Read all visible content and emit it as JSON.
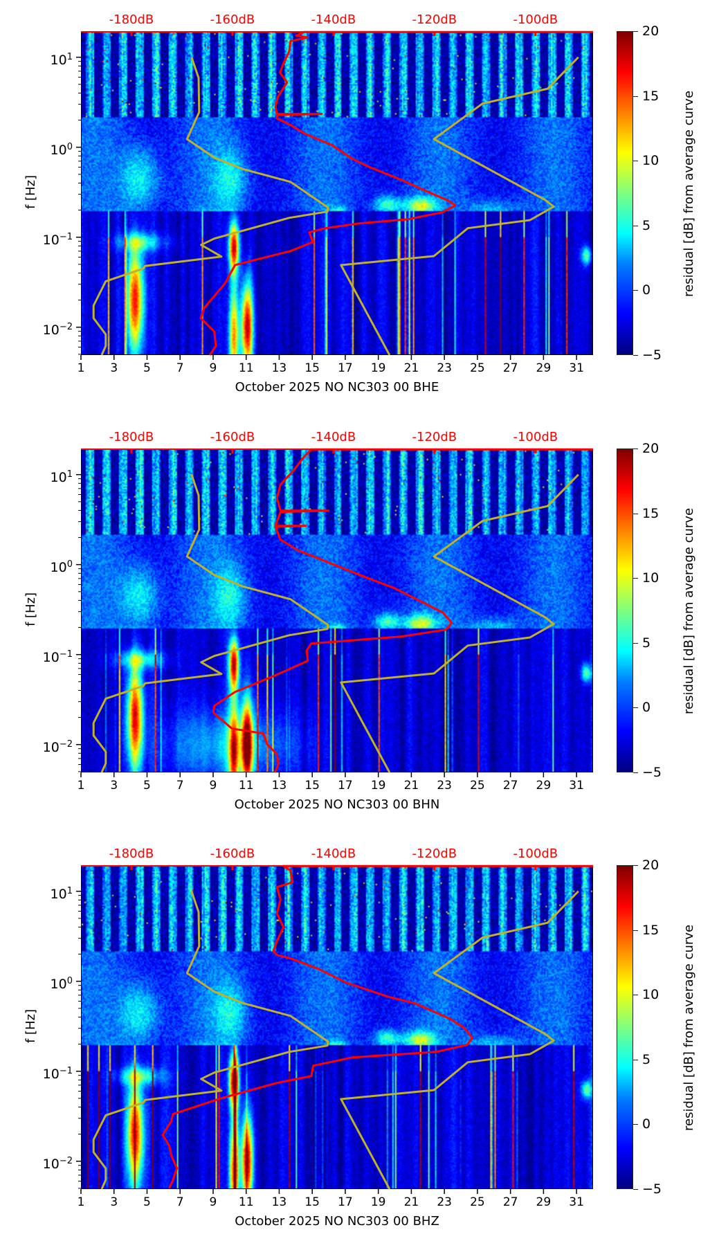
{
  "figure": {
    "colorbar": {
      "label": "residual [dB] from average curve",
      "ticks": [
        "20",
        "15",
        "10",
        "5",
        "0",
        "−5"
      ],
      "range": [
        -5,
        20
      ],
      "colormap": "jet"
    },
    "ylabel": "f [Hz]",
    "yticks": [
      {
        "base": "10",
        "exp": "1"
      },
      {
        "base": "10",
        "exp": "0"
      },
      {
        "base": "10",
        "exp": "−1"
      },
      {
        "base": "10",
        "exp": "−2"
      }
    ],
    "xticks": [
      "1",
      "3",
      "5",
      "7",
      "9",
      "11",
      "13",
      "15",
      "17",
      "19",
      "21",
      "23",
      "25",
      "27",
      "29",
      "31"
    ],
    "dbticks": [
      "-180dB",
      "-160dB",
      "-140dB",
      "-120dB",
      "-100dB"
    ]
  },
  "colors": {
    "average_curve": "#ff0000",
    "noise_model": "#bfb12a",
    "db_axis": "#ff0000"
  },
  "chart_data": [
    {
      "type": "heatmap",
      "title": "",
      "xlabel": "October 2025 NO NC303 00 BHE",
      "ylabel": "f [Hz]",
      "x_unit": "day of month",
      "xlim": [
        1,
        32
      ],
      "y_scale": "log",
      "ylim": [
        0.0049,
        19.5
      ],
      "top_axis": {
        "unit": "dB",
        "xlim": [
          -190,
          -88.6
        ],
        "ticks": [
          -180,
          -160,
          -140,
          -120,
          -100
        ]
      },
      "colorbar": {
        "label": "residual [dB] from average curve",
        "range": [
          -5,
          20
        ]
      },
      "series": [
        {
          "name": "average PSD curve",
          "axis": "top",
          "color": "red",
          "points_db_log10f": [
            [
              -88.6,
              1.28
            ],
            [
              -145.8,
              1.28
            ],
            [
              -147.4,
              1.24
            ],
            [
              -145.1,
              1.22
            ],
            [
              -148.5,
              1.18
            ],
            [
              -148.8,
              1.06
            ],
            [
              -149.9,
              0.93
            ],
            [
              -150.6,
              0.83
            ],
            [
              -149.2,
              0.72
            ],
            [
              -151.0,
              0.56
            ],
            [
              -151.5,
              0.45
            ],
            [
              -151.2,
              0.37
            ],
            [
              -142.3,
              0.37
            ],
            [
              -151.2,
              0.36
            ],
            [
              -151.2,
              0.32
            ],
            [
              -148.5,
              0.246
            ],
            [
              -145.8,
              0.154
            ],
            [
              -140.3,
              0.023
            ],
            [
              -136.2,
              -0.131
            ],
            [
              -133.4,
              -0.208
            ],
            [
              -126.6,
              -0.362
            ],
            [
              -121.1,
              -0.5
            ],
            [
              -117.3,
              -0.592
            ],
            [
              -115.9,
              -0.646
            ],
            [
              -118.4,
              -0.723
            ],
            [
              -125.2,
              -0.8
            ],
            [
              -134.8,
              -0.846
            ],
            [
              -141.6,
              -0.9
            ],
            [
              -144.8,
              -0.946
            ],
            [
              -144.1,
              -1.054
            ],
            [
              -148.5,
              -1.154
            ],
            [
              -154.7,
              -1.24
            ],
            [
              -159.5,
              -1.31
            ],
            [
              -161.5,
              -1.515
            ],
            [
              -165.6,
              -1.785
            ],
            [
              -166.3,
              -1.9
            ],
            [
              -163.6,
              -2.05
            ],
            [
              -163.3,
              -2.21
            ],
            [
              -164.5,
              -2.31
            ]
          ]
        },
        {
          "name": "low noise model",
          "axis": "top",
          "color": "yellow",
          "points_db_log10f": [
            [
              -168.1,
              1.0
            ],
            [
              -166.7,
              0.77
            ],
            [
              -166.6,
              0.39
            ],
            [
              -169.0,
              0.09
            ],
            [
              -163.6,
              -0.115
            ],
            [
              -158.1,
              -0.24
            ],
            [
              -148.5,
              -0.385
            ],
            [
              -141.1,
              -0.67
            ],
            [
              -141.2,
              -0.715
            ],
            [
              -148.8,
              -0.785
            ],
            [
              -163.6,
              -1.015
            ],
            [
              -166.2,
              -1.085
            ],
            [
              -162.2,
              -1.215
            ],
            [
              -177.3,
              -1.32
            ],
            [
              -177.7,
              -1.35
            ],
            [
              -185.1,
              -1.49
            ],
            [
              -187.5,
              -1.76
            ],
            [
              -187.5,
              -1.9
            ],
            [
              -185.1,
              -2.08
            ],
            [
              -185.1,
              -2.21
            ],
            [
              -185.9,
              -2.31
            ]
          ]
        },
        {
          "name": "high noise model",
          "axis": "top",
          "color": "yellow",
          "points_db_log10f": [
            [
              -91.5,
              1.0
            ],
            [
              -97.6,
              0.65
            ],
            [
              -110.5,
              0.485
            ],
            [
              -120.1,
              0.09
            ],
            [
              -98.1,
              -0.585
            ],
            [
              -96.4,
              -0.66
            ],
            [
              -101.1,
              -0.81
            ],
            [
              -113.4,
              -0.9
            ],
            [
              -120.1,
              -1.21
            ],
            [
              -138.5,
              -1.31
            ],
            [
              -128.9,
              -2.31
            ]
          ]
        }
      ]
    },
    {
      "type": "heatmap",
      "title": "",
      "xlabel": "October 2025 NO NC303 00 BHN",
      "ylabel": "f [Hz]",
      "x_unit": "day of month",
      "xlim": [
        1,
        32
      ],
      "y_scale": "log",
      "ylim": [
        0.0049,
        19.5
      ],
      "top_axis": {
        "unit": "dB",
        "xlim": [
          -190,
          -88.6
        ],
        "ticks": [
          -180,
          -160,
          -140,
          -120,
          -100
        ]
      },
      "colorbar": {
        "label": "residual [dB] from average curve",
        "range": [
          -5,
          20
        ]
      },
      "series": [
        {
          "name": "average PSD curve",
          "axis": "top",
          "color": "red",
          "points_db_log10f": [
            [
              -88.6,
              1.28
            ],
            [
              -144.4,
              1.28
            ],
            [
              -145.8,
              1.2
            ],
            [
              -147.9,
              1.046
            ],
            [
              -150.5,
              0.89
            ],
            [
              -151.2,
              0.74
            ],
            [
              -150.5,
              0.6
            ],
            [
              -141.0,
              0.6
            ],
            [
              -150.5,
              0.585
            ],
            [
              -151.5,
              0.43
            ],
            [
              -145.5,
              0.43
            ],
            [
              -151.5,
              0.42
            ],
            [
              -150.5,
              0.277
            ],
            [
              -147.1,
              0.16
            ],
            [
              -140.3,
              0.008
            ],
            [
              -133.4,
              -0.146
            ],
            [
              -127.9,
              -0.262
            ],
            [
              -122.5,
              -0.415
            ],
            [
              -118.4,
              -0.53
            ],
            [
              -116.6,
              -0.646
            ],
            [
              -117.7,
              -0.723
            ],
            [
              -126.6,
              -0.8
            ],
            [
              -144.4,
              -0.877
            ],
            [
              -145.3,
              -0.954
            ],
            [
              -145.1,
              -1.07
            ],
            [
              -151.2,
              -1.223
            ],
            [
              -159.5,
              -1.415
            ],
            [
              -163.6,
              -1.57
            ],
            [
              -163.8,
              -1.646
            ],
            [
              -162.2,
              -1.723
            ],
            [
              -160.1,
              -1.823
            ],
            [
              -153.9,
              -1.877
            ],
            [
              -153.2,
              -1.992
            ],
            [
              -151.2,
              -2.108
            ],
            [
              -150.9,
              -2.223
            ],
            [
              -151.6,
              -2.31
            ]
          ]
        },
        {
          "name": "low noise model",
          "axis": "top",
          "color": "yellow",
          "points_db_log10f": [
            [
              -168.1,
              1.0
            ],
            [
              -166.7,
              0.77
            ],
            [
              -166.6,
              0.39
            ],
            [
              -169.0,
              0.09
            ],
            [
              -163.6,
              -0.115
            ],
            [
              -158.1,
              -0.24
            ],
            [
              -148.5,
              -0.385
            ],
            [
              -141.1,
              -0.67
            ],
            [
              -141.2,
              -0.715
            ],
            [
              -148.8,
              -0.785
            ],
            [
              -163.6,
              -1.015
            ],
            [
              -166.2,
              -1.085
            ],
            [
              -162.2,
              -1.215
            ],
            [
              -177.3,
              -1.32
            ],
            [
              -177.7,
              -1.35
            ],
            [
              -185.1,
              -1.49
            ],
            [
              -187.5,
              -1.76
            ],
            [
              -187.5,
              -1.9
            ],
            [
              -185.1,
              -2.08
            ],
            [
              -185.1,
              -2.21
            ],
            [
              -185.9,
              -2.31
            ]
          ]
        },
        {
          "name": "high noise model",
          "axis": "top",
          "color": "yellow",
          "points_db_log10f": [
            [
              -91.5,
              1.0
            ],
            [
              -97.6,
              0.65
            ],
            [
              -110.5,
              0.485
            ],
            [
              -120.1,
              0.09
            ],
            [
              -98.1,
              -0.585
            ],
            [
              -96.4,
              -0.66
            ],
            [
              -101.1,
              -0.81
            ],
            [
              -113.4,
              -0.9
            ],
            [
              -120.1,
              -1.21
            ],
            [
              -138.5,
              -1.31
            ],
            [
              -128.9,
              -2.31
            ]
          ]
        }
      ]
    },
    {
      "type": "heatmap",
      "title": "",
      "xlabel": "October 2025 NO NC303 00 BHZ",
      "ylabel": "f [Hz]",
      "x_unit": "day of month",
      "xlim": [
        1,
        32
      ],
      "y_scale": "log",
      "ylim": [
        0.0049,
        19.5
      ],
      "top_axis": {
        "unit": "dB",
        "xlim": [
          -190,
          -88.6
        ],
        "ticks": [
          -180,
          -160,
          -140,
          -120,
          -100
        ]
      },
      "colorbar": {
        "label": "residual [dB] from average curve",
        "range": [
          -5,
          20
        ]
      },
      "series": [
        {
          "name": "average PSD curve",
          "axis": "top",
          "color": "red",
          "points_db_log10f": [
            [
              -88.6,
              1.28
            ],
            [
              -149.9,
              1.28
            ],
            [
              -148.5,
              1.23
            ],
            [
              -148.1,
              1.1
            ],
            [
              -151.2,
              1.046
            ],
            [
              -150.5,
              0.908
            ],
            [
              -151.2,
              0.754
            ],
            [
              -149.9,
              0.6
            ],
            [
              -151.2,
              0.446
            ],
            [
              -151.9,
              0.33
            ],
            [
              -151.2,
              0.292
            ],
            [
              -148.5,
              0.254
            ],
            [
              -143.0,
              0.138
            ],
            [
              -137.5,
              -0.015
            ],
            [
              -133.4,
              -0.092
            ],
            [
              -129.3,
              -0.17
            ],
            [
              -123.8,
              -0.246
            ],
            [
              -117.0,
              -0.415
            ],
            [
              -114.2,
              -0.515
            ],
            [
              -112.5,
              -0.63
            ],
            [
              -113.6,
              -0.708
            ],
            [
              -119.7,
              -0.785
            ],
            [
              -136.2,
              -0.846
            ],
            [
              -144.0,
              -0.938
            ],
            [
              -144.4,
              -1.054
            ],
            [
              -151.2,
              -1.13
            ],
            [
              -162.2,
              -1.3
            ],
            [
              -171.8,
              -1.477
            ],
            [
              -172.1,
              -1.554
            ],
            [
              -173.8,
              -1.708
            ],
            [
              -172.5,
              -1.83
            ],
            [
              -172.1,
              -1.938
            ],
            [
              -171.0,
              -2.077
            ],
            [
              -171.8,
              -2.208
            ],
            [
              -172.5,
              -2.3
            ]
          ]
        },
        {
          "name": "low noise model",
          "axis": "top",
          "color": "yellow",
          "points_db_log10f": [
            [
              -168.1,
              1.0
            ],
            [
              -166.7,
              0.77
            ],
            [
              -166.6,
              0.39
            ],
            [
              -169.0,
              0.09
            ],
            [
              -163.6,
              -0.115
            ],
            [
              -158.1,
              -0.24
            ],
            [
              -148.5,
              -0.385
            ],
            [
              -141.1,
              -0.67
            ],
            [
              -141.2,
              -0.715
            ],
            [
              -148.8,
              -0.785
            ],
            [
              -163.6,
              -1.015
            ],
            [
              -166.2,
              -1.085
            ],
            [
              -162.2,
              -1.215
            ],
            [
              -177.3,
              -1.32
            ],
            [
              -177.7,
              -1.35
            ],
            [
              -185.1,
              -1.49
            ],
            [
              -187.5,
              -1.76
            ],
            [
              -187.5,
              -1.9
            ],
            [
              -185.1,
              -2.08
            ],
            [
              -185.1,
              -2.21
            ],
            [
              -185.9,
              -2.31
            ]
          ]
        },
        {
          "name": "high noise model",
          "axis": "top",
          "color": "yellow",
          "points_db_log10f": [
            [
              -91.5,
              1.0
            ],
            [
              -97.6,
              0.65
            ],
            [
              -110.5,
              0.485
            ],
            [
              -120.1,
              0.09
            ],
            [
              -98.1,
              -0.585
            ],
            [
              -96.4,
              -0.66
            ],
            [
              -101.1,
              -0.81
            ],
            [
              -113.4,
              -0.9
            ],
            [
              -120.1,
              -1.21
            ],
            [
              -138.5,
              -1.31
            ],
            [
              -128.9,
              -2.31
            ]
          ]
        }
      ]
    }
  ]
}
